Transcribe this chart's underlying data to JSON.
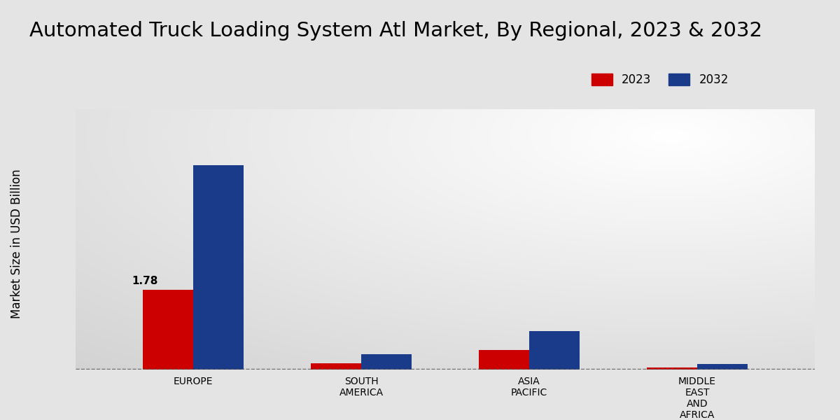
{
  "title": "Automated Truck Loading System Atl Market, By Regional, 2023 & 2032",
  "ylabel": "Market Size in USD Billion",
  "categories": [
    "EUROPE",
    "SOUTH\nAMERICA",
    "ASIA\nPACIFIC",
    "MIDDLE\nEAST\nAND\nAFRICA"
  ],
  "values_2023": [
    1.78,
    0.14,
    0.44,
    0.05
  ],
  "values_2032": [
    4.55,
    0.34,
    0.85,
    0.12
  ],
  "color_2023": "#cc0000",
  "color_2032": "#1a3a8a",
  "annotation_value": "1.78",
  "annotation_region_idx": 0,
  "bar_width": 0.3,
  "ylim": [
    0,
    5.8
  ],
  "legend_labels": [
    "2023",
    "2032"
  ],
  "title_fontsize": 21,
  "axis_label_fontsize": 12,
  "tick_fontsize": 10,
  "legend_fontsize": 12,
  "bg_color": "#e4e4e4",
  "bottom_bar_color": "#cc0000"
}
